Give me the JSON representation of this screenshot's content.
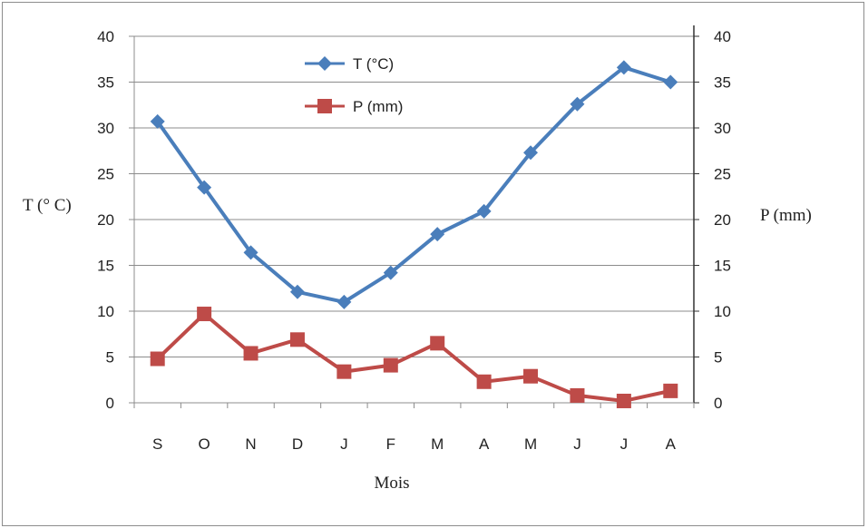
{
  "chart_data": {
    "type": "line",
    "categories": [
      "S",
      "O",
      "N",
      "D",
      "J",
      "F",
      "M",
      "A",
      "M",
      "J",
      "J",
      "A"
    ],
    "series": [
      {
        "name": "T (°C)",
        "axis": "left",
        "marker": "diamond",
        "color": "#4A7EBB",
        "values": [
          30.7,
          23.5,
          16.4,
          12.1,
          11.0,
          14.2,
          18.4,
          20.9,
          27.3,
          32.6,
          36.6,
          35.0
        ]
      },
      {
        "name": "P (mm)",
        "axis": "right",
        "marker": "square",
        "color": "#BE4B48",
        "values": [
          4.8,
          9.7,
          5.4,
          6.9,
          3.4,
          4.1,
          6.5,
          2.3,
          2.9,
          0.8,
          0.2,
          1.3
        ]
      }
    ],
    "xlabel": "Mois",
    "ylabel_left": "T (° C)",
    "ylabel_right": "P (mm)",
    "ylim_left": [
      0,
      40
    ],
    "ylim_right": [
      0,
      40
    ],
    "yticks": [
      "0",
      "5",
      "10",
      "15",
      "20",
      "25",
      "30",
      "35",
      "40"
    ],
    "grid": true,
    "legend_position": "top-left"
  }
}
